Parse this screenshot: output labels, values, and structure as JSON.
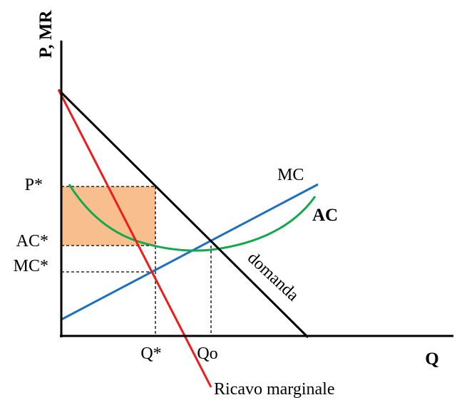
{
  "axes": {
    "y_label": "P, MR",
    "x_label": "Q"
  },
  "ticks": {
    "p_star": "P*",
    "ac_star": "AC*",
    "mc_star": "MC*",
    "q_star": "Q*",
    "q_o": "Qo"
  },
  "curves": {
    "mc": {
      "label": "MC",
      "color": "#1F6FBF"
    },
    "ac": {
      "label": "AC",
      "color": "#12A84B"
    },
    "demand": {
      "label": "domanda",
      "color": "#000000"
    },
    "mr": {
      "label": "Ricavo marginale",
      "color": "#EE1C1C"
    }
  },
  "profit_area": {
    "color": "#F8BE8E"
  }
}
